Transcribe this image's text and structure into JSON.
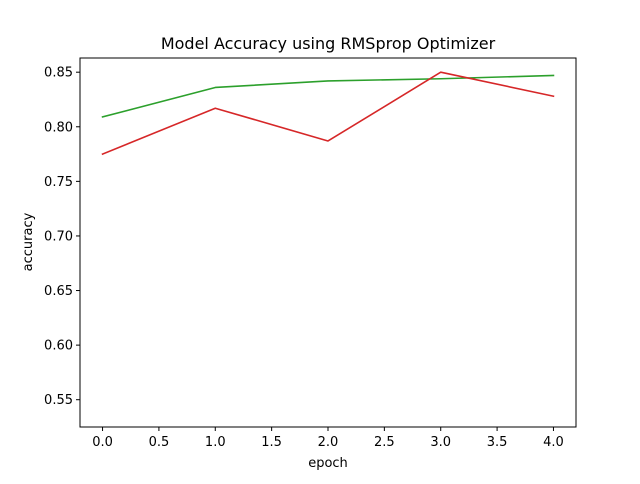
{
  "chart_data": {
    "type": "line",
    "title": "Model Accuracy using RMSprop Optimizer",
    "xlabel": "epoch",
    "ylabel": "accuracy",
    "xlim": [
      -0.2,
      4.2
    ],
    "ylim": [
      0.525,
      0.863
    ],
    "x_ticks": [
      0.0,
      0.5,
      1.0,
      1.5,
      2.0,
      2.5,
      3.0,
      3.5,
      4.0
    ],
    "x_tick_labels": [
      "0.0",
      "0.5",
      "1.0",
      "1.5",
      "2.0",
      "2.5",
      "3.0",
      "3.5",
      "4.0"
    ],
    "y_ticks": [
      0.55,
      0.6,
      0.65,
      0.7,
      0.75,
      0.8,
      0.85
    ],
    "y_tick_labels": [
      "0.55",
      "0.60",
      "0.65",
      "0.70",
      "0.75",
      "0.80",
      "0.85"
    ],
    "grid": false,
    "legend": "none",
    "x": [
      0,
      1,
      2,
      3,
      4
    ],
    "series": [
      {
        "color": "#2ca02c",
        "values": [
          0.809,
          0.836,
          0.842,
          0.844,
          0.847
        ]
      },
      {
        "color": "#d62728",
        "values": [
          0.775,
          0.817,
          0.787,
          0.85,
          0.828
        ]
      }
    ]
  }
}
